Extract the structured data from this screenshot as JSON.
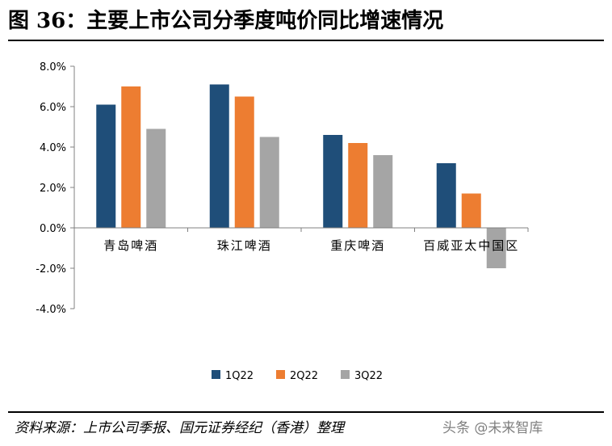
{
  "page": {
    "title": "图 36：主要上市公司分季度吨价同比增速情况",
    "source": "资料来源：上市公司季报、国元证券经纪（香港）整理",
    "watermark": "头条 @未来智库"
  },
  "chart_data": {
    "type": "bar",
    "title": "",
    "xlabel": "",
    "ylabel": "",
    "categories": [
      "青岛啤酒",
      "珠江啤酒",
      "重庆啤酒",
      "百威亚太中国区"
    ],
    "series": [
      {
        "name": "1Q22",
        "color": "#1F4E79",
        "values": [
          6.1,
          7.1,
          4.6,
          3.2
        ]
      },
      {
        "name": "2Q22",
        "color": "#ED7D31",
        "values": [
          7.0,
          6.5,
          4.2,
          1.7
        ]
      },
      {
        "name": "3Q22",
        "color": "#A5A5A5",
        "values": [
          4.9,
          4.5,
          3.6,
          -2.0
        ]
      }
    ],
    "y_ticks": [
      "8.0%",
      "6.0%",
      "4.0%",
      "2.0%",
      "0.0%",
      "-2.0%",
      "-4.0%"
    ],
    "y_tick_values": [
      8,
      6,
      4,
      2,
      0,
      -2,
      -4
    ],
    "ylim": [
      -4,
      8
    ],
    "grid": false,
    "legend_position": "bottom"
  }
}
